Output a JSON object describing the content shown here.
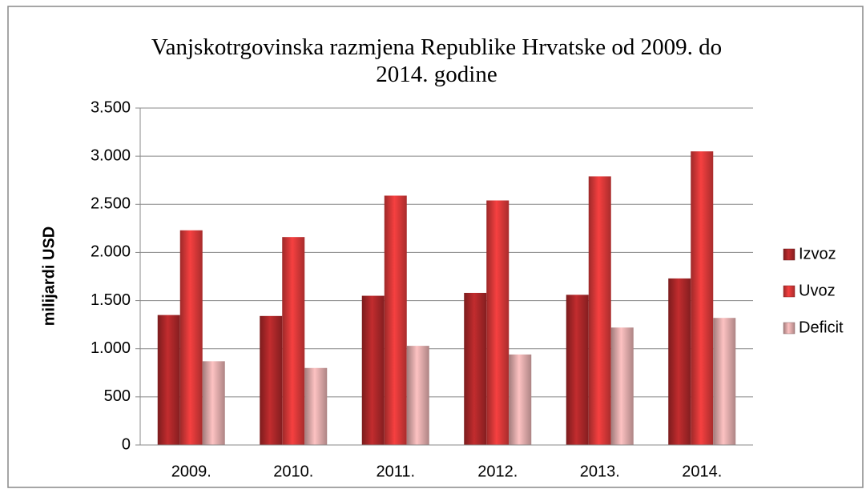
{
  "chart_data": {
    "type": "bar",
    "title": "Vanjskotrgovinska razmjena Republike Hrvatske od 2009. do 2014. godine",
    "y_label": "milijardi USD",
    "categories": [
      "2009.",
      "2010.",
      "2011.",
      "2012.",
      "2013.",
      "2014."
    ],
    "series": [
      {
        "name": "Izvoz",
        "color": "#b0282a",
        "values": [
          1350,
          1340,
          1550,
          1580,
          1560,
          1730
        ]
      },
      {
        "name": "Uvoz",
        "color": "#e03a3a",
        "values": [
          2230,
          2160,
          2590,
          2540,
          2790,
          3050
        ]
      },
      {
        "name": "Deficit",
        "color": "#e6b0b0",
        "values": [
          870,
          800,
          1030,
          940,
          1220,
          1320
        ]
      }
    ],
    "ylim": [
      0,
      3500
    ],
    "yticks": [
      0,
      500,
      {
        "value": 1000,
        "label": "1.000"
      },
      {
        "value": 1500,
        "label": "1.500"
      },
      {
        "value": 2000,
        "label": "2.000"
      },
      {
        "value": 2500,
        "label": "2.500"
      },
      {
        "value": 3000,
        "label": "3.000"
      },
      {
        "value": 3500,
        "label": "3.500"
      }
    ],
    "grid": true,
    "legend": "right"
  }
}
